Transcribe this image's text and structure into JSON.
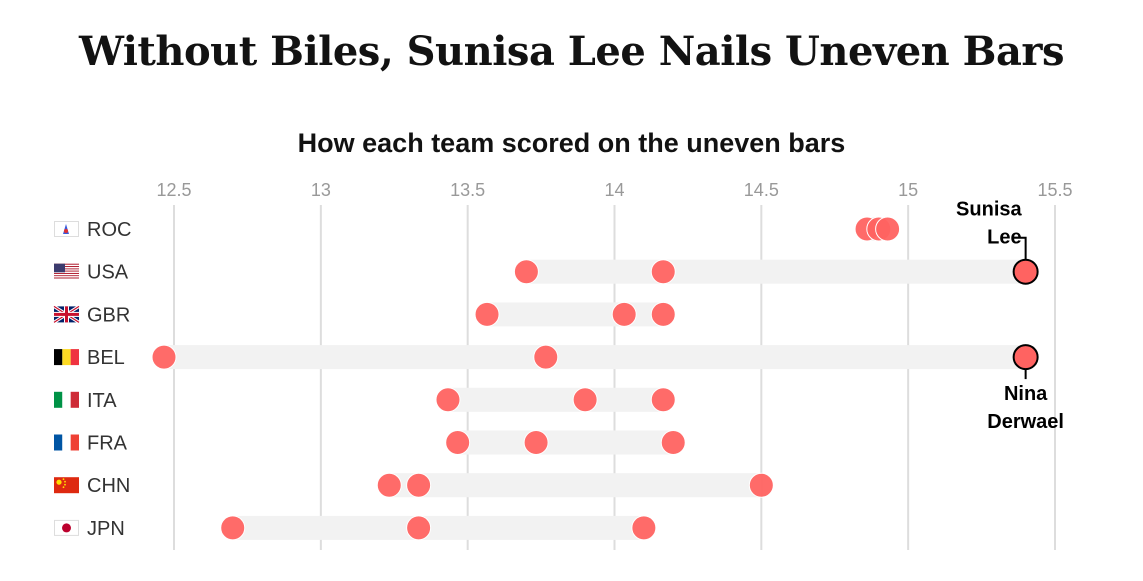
{
  "page": {
    "title": "Without Biles, Sunisa Lee Nails Uneven Bars"
  },
  "chart_data": {
    "type": "scatter",
    "title": "How each team scored on the uneven bars",
    "xlabel": "",
    "ylabel": "",
    "xlim": [
      12.5,
      15.5
    ],
    "xticks": [
      12.5,
      13,
      13.5,
      14,
      14.5,
      15,
      15.5
    ],
    "grid": true,
    "dot_color": "#ff6361",
    "band_color": "#f2f2f2",
    "gridline_color": "#dddddd",
    "teams": [
      {
        "code": "ROC",
        "scores": [
          14.86,
          14.9,
          14.93
        ]
      },
      {
        "code": "USA",
        "scores": [
          13.7,
          14.166,
          15.4
        ]
      },
      {
        "code": "GBR",
        "scores": [
          13.566,
          14.033,
          14.166
        ]
      },
      {
        "code": "BEL",
        "scores": [
          12.466,
          13.766,
          15.4
        ]
      },
      {
        "code": "ITA",
        "scores": [
          13.433,
          13.9,
          14.166
        ]
      },
      {
        "code": "FRA",
        "scores": [
          13.466,
          13.733,
          14.2
        ]
      },
      {
        "code": "CHN",
        "scores": [
          13.233,
          13.333,
          14.5
        ]
      },
      {
        "code": "JPN",
        "scores": [
          12.7,
          13.333,
          14.1
        ]
      }
    ],
    "annotations": [
      {
        "team": "USA",
        "score": 15.4,
        "lines": [
          "Sunisa",
          "Lee"
        ],
        "position": "above"
      },
      {
        "team": "BEL",
        "score": 15.4,
        "lines": [
          "Nina",
          "Derwael"
        ],
        "position": "below"
      }
    ]
  },
  "flag_icons": {
    "ROC": "roc-emblem-flag-icon",
    "USA": "usa-flag-icon",
    "GBR": "gbr-flag-icon",
    "BEL": "bel-flag-icon",
    "ITA": "ita-flag-icon",
    "FRA": "fra-flag-icon",
    "CHN": "chn-flag-icon",
    "JPN": "jpn-flag-icon"
  }
}
